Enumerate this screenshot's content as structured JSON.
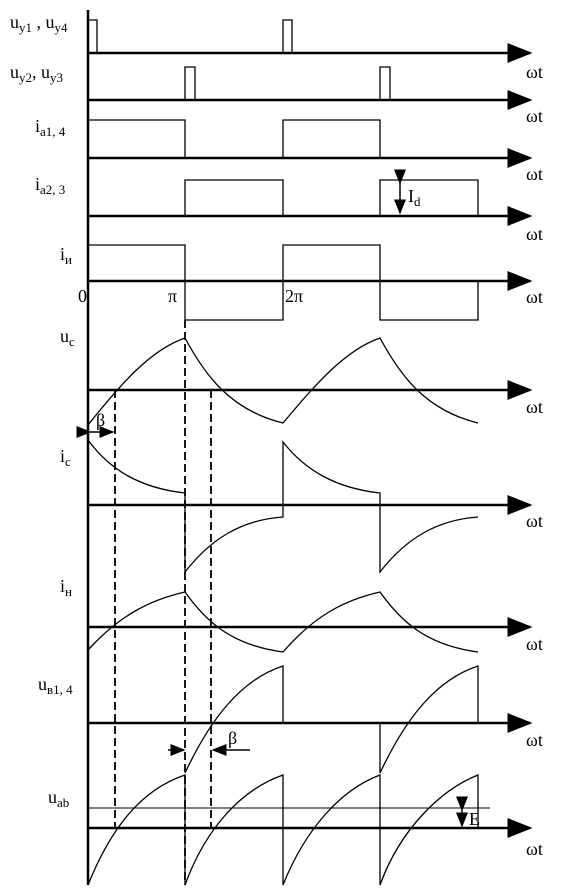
{
  "signals": [
    [
      "u",
      "y1",
      " , u",
      "y4"
    ],
    [
      "u",
      "y2",
      ", u",
      "y3"
    ],
    [
      "i",
      "a1, 4"
    ],
    [
      "i",
      "a2, 3"
    ],
    [
      "i",
      "и"
    ],
    [
      "u",
      "c"
    ],
    [
      "i",
      "c"
    ],
    [
      "i",
      "н"
    ],
    [
      "u",
      "в1, 4"
    ],
    [
      "u",
      "ab"
    ]
  ],
  "axis_label": "ωt",
  "phase_ticks": [
    "0",
    "π",
    "2π"
  ],
  "current": [
    "I",
    "d"
  ],
  "angle": "β",
  "emf": "E"
}
